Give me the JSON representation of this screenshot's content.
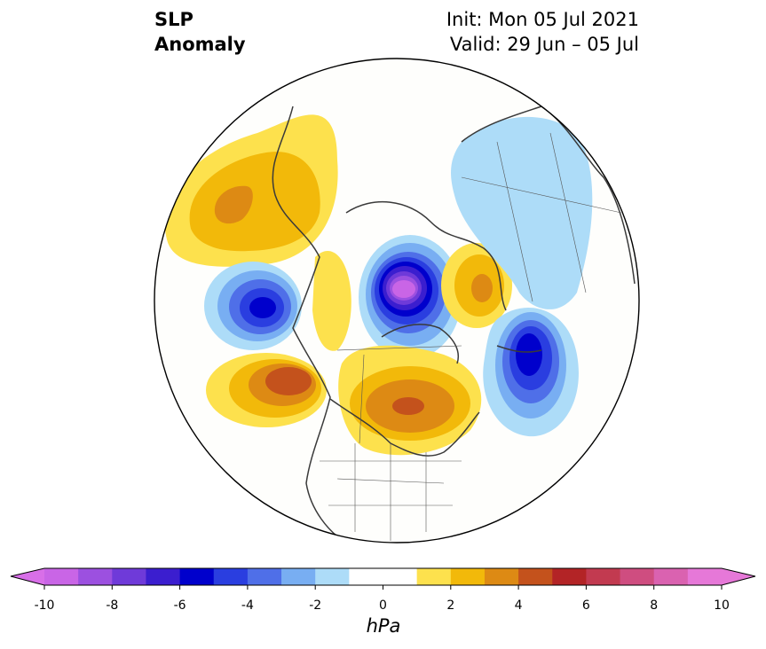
{
  "header": {
    "title_line1": "SLP",
    "title_line2": "Anomaly",
    "init_label": "Init: Mon 05 Jul 2021",
    "valid_label": "Valid: 29 Jun – 05 Jul"
  },
  "colorbar": {
    "units": "hPa",
    "extend": "both",
    "tick_labels": [
      "-10",
      "-8",
      "-6",
      "-4",
      "-2",
      "0",
      "2",
      "4",
      "6",
      "8",
      "10"
    ],
    "bins": [
      {
        "from": -10,
        "to": -9,
        "color": "#c965e6"
      },
      {
        "from": -9,
        "to": -8,
        "color": "#9c50e0"
      },
      {
        "from": -8,
        "to": -7,
        "color": "#6f3ad9"
      },
      {
        "from": -7,
        "to": -6,
        "color": "#3b1ecf"
      },
      {
        "from": -6,
        "to": -5,
        "color": "#0000cc"
      },
      {
        "from": -5,
        "to": -4,
        "color": "#2a3ee0"
      },
      {
        "from": -4,
        "to": -3,
        "color": "#4f6fe8"
      },
      {
        "from": -3,
        "to": -2,
        "color": "#78aef2"
      },
      {
        "from": -2,
        "to": -1,
        "color": "#addcf8"
      },
      {
        "from": -1,
        "to": 1,
        "color": "#ffffff"
      },
      {
        "from": 1,
        "to": 2,
        "color": "#fde14d"
      },
      {
        "from": 2,
        "to": 3,
        "color": "#f2b90a"
      },
      {
        "from": 3,
        "to": 4,
        "color": "#dd8a14"
      },
      {
        "from": 4,
        "to": 5,
        "color": "#c4521c"
      },
      {
        "from": 5,
        "to": 6,
        "color": "#b32426"
      },
      {
        "from": 6,
        "to": 7,
        "color": "#c23a50"
      },
      {
        "from": 7,
        "to": 8,
        "color": "#cf4d80"
      },
      {
        "from": 8,
        "to": 9,
        "color": "#da62b0"
      },
      {
        "from": 9,
        "to": 10,
        "color": "#e678d8"
      }
    ],
    "under_color": "#d86fe8",
    "over_color": "#e678d8"
  },
  "map": {
    "projection": "north polar stereographic",
    "anomaly_centers": [
      {
        "name": "east-siberian-high",
        "value": 3.5
      },
      {
        "name": "bering-low",
        "value": -5.5
      },
      {
        "name": "gulf-of-alaska-high",
        "value": 4.5
      },
      {
        "name": "arctic-low",
        "value": -9.5
      },
      {
        "name": "scandinavian-high",
        "value": 3.2
      },
      {
        "name": "north-atlantic-low",
        "value": -6.5
      },
      {
        "name": "hudson-bay-high",
        "value": 5.2
      },
      {
        "name": "eurasian-negative",
        "value": -1.5
      }
    ]
  }
}
